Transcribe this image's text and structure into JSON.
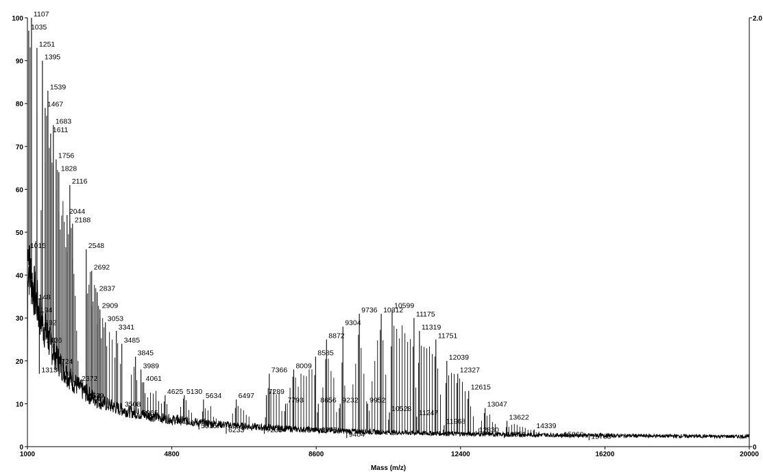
{
  "chart_data": {
    "type": "line",
    "title": "",
    "xlabel": "Mass (m/z)",
    "ylabel": "",
    "xlim": [
      1000,
      20000
    ],
    "ylim": [
      0,
      100
    ],
    "x_ticks": [
      "1000",
      "4800",
      "8600",
      "12400",
      "16200",
      "20000"
    ],
    "y_ticks": [
      "0",
      "10",
      "20",
      "30",
      "40",
      "50",
      "60",
      "70",
      "80",
      "90",
      "100"
    ],
    "right_axis_ticks": [
      "0",
      "2.0"
    ],
    "grid": false,
    "line_color": "#000000",
    "peak_labels": [
      {
        "label": "1107",
        "x": 1107,
        "y": 100
      },
      {
        "label": "1035",
        "x": 1035,
        "y": 97
      },
      {
        "label": "1251",
        "x": 1251,
        "y": 93
      },
      {
        "label": "1395",
        "x": 1395,
        "y": 90
      },
      {
        "label": "1539",
        "x": 1539,
        "y": 83
      },
      {
        "label": "1467",
        "x": 1467,
        "y": 79
      },
      {
        "label": "1683",
        "x": 1683,
        "y": 75
      },
      {
        "label": "1611",
        "x": 1611,
        "y": 73
      },
      {
        "label": "1756",
        "x": 1756,
        "y": 67
      },
      {
        "label": "1828",
        "x": 1828,
        "y": 64
      },
      {
        "label": "2116",
        "x": 2116,
        "y": 61
      },
      {
        "label": "2044",
        "x": 2044,
        "y": 54
      },
      {
        "label": "2188",
        "x": 2188,
        "y": 52
      },
      {
        "label": "2548",
        "x": 2548,
        "y": 46
      },
      {
        "label": "2692",
        "x": 2692,
        "y": 41
      },
      {
        "label": "2837",
        "x": 2837,
        "y": 36
      },
      {
        "label": "2909",
        "x": 2909,
        "y": 32
      },
      {
        "label": "3053",
        "x": 3053,
        "y": 29
      },
      {
        "label": "3341",
        "x": 3341,
        "y": 27
      },
      {
        "label": "3485",
        "x": 3485,
        "y": 24
      },
      {
        "label": "3845",
        "x": 3845,
        "y": 21
      },
      {
        "label": "3989",
        "x": 3989,
        "y": 18
      },
      {
        "label": "4061",
        "x": 4061,
        "y": 15
      },
      {
        "label": "4625",
        "x": 4625,
        "y": 12
      },
      {
        "label": "5130",
        "x": 5130,
        "y": 12
      },
      {
        "label": "5634",
        "x": 5634,
        "y": 11
      },
      {
        "label": "6497",
        "x": 6497,
        "y": 11
      },
      {
        "label": "7289",
        "x": 7289,
        "y": 12
      },
      {
        "label": "7366",
        "x": 7366,
        "y": 17
      },
      {
        "label": "7793",
        "x": 7793,
        "y": 10
      },
      {
        "label": "8009",
        "x": 8009,
        "y": 18
      },
      {
        "label": "8585",
        "x": 8585,
        "y": 21
      },
      {
        "label": "8656",
        "x": 8656,
        "y": 10
      },
      {
        "label": "8872",
        "x": 8872,
        "y": 25
      },
      {
        "label": "9232",
        "x": 9232,
        "y": 10
      },
      {
        "label": "9304",
        "x": 9304,
        "y": 28
      },
      {
        "label": "9736",
        "x": 9736,
        "y": 31
      },
      {
        "label": "9952",
        "x": 9952,
        "y": 10
      },
      {
        "label": "10312",
        "x": 10312,
        "y": 31
      },
      {
        "label": "10599",
        "x": 10599,
        "y": 32
      },
      {
        "label": "10528",
        "x": 10528,
        "y": 8
      },
      {
        "label": "11175",
        "x": 11175,
        "y": 30
      },
      {
        "label": "11319",
        "x": 11319,
        "y": 27
      },
      {
        "label": "11247",
        "x": 11247,
        "y": 7
      },
      {
        "label": "11751",
        "x": 11751,
        "y": 25
      },
      {
        "label": "11968",
        "x": 11968,
        "y": 5
      },
      {
        "label": "12039",
        "x": 12039,
        "y": 20
      },
      {
        "label": "12327",
        "x": 12327,
        "y": 17
      },
      {
        "label": "12615",
        "x": 12615,
        "y": 13
      },
      {
        "label": "12830",
        "x": 12830,
        "y": 3
      },
      {
        "label": "13047",
        "x": 13047,
        "y": 9
      },
      {
        "label": "13622",
        "x": 13622,
        "y": 6
      },
      {
        "label": "14339",
        "x": 14339,
        "y": 4
      },
      {
        "label": "15060",
        "x": 15060,
        "y": 2
      },
      {
        "label": "15783",
        "x": 15783,
        "y": 1.5
      }
    ],
    "secondary_peak_labels": [
      {
        "label": "1015",
        "x": 1015,
        "y": 46
      },
      {
        "label": "1148",
        "x": 1148,
        "y": 34
      },
      {
        "label": "1194",
        "x": 1194,
        "y": 31
      },
      {
        "label": "1292",
        "x": 1292,
        "y": 28
      },
      {
        "label": "1436",
        "x": 1436,
        "y": 24
      },
      {
        "label": "1724",
        "x": 1724,
        "y": 19
      },
      {
        "label": "1313",
        "x": 1313,
        "y": 17
      },
      {
        "label": "2372",
        "x": 2372,
        "y": 15
      },
      {
        "label": "2539",
        "x": 2539,
        "y": 11
      },
      {
        "label": "3508",
        "x": 3508,
        "y": 9
      },
      {
        "label": "3965",
        "x": 3965,
        "y": 7
      },
      {
        "label": "4815",
        "x": 4815,
        "y": 5
      },
      {
        "label": "5515",
        "x": 5515,
        "y": 4
      },
      {
        "label": "6233",
        "x": 6233,
        "y": 3
      },
      {
        "label": "7235",
        "x": 7235,
        "y": 3
      },
      {
        "label": "8675",
        "x": 8675,
        "y": 3
      },
      {
        "label": "9404",
        "x": 9404,
        "y": 2
      },
      {
        "label": "13551",
        "x": 13551,
        "y": 2
      }
    ]
  }
}
